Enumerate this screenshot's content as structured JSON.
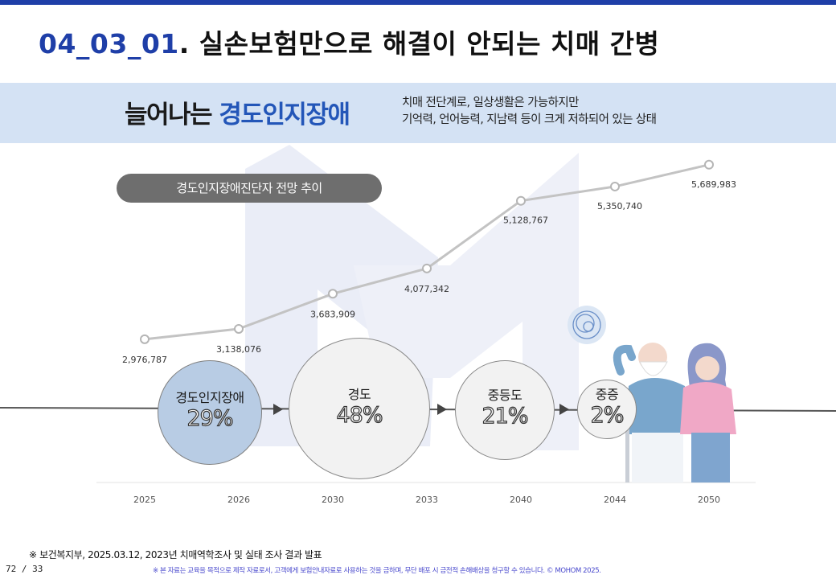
{
  "header": {
    "code": "04_03_01",
    "title": ". 실손보험만으로 해결이 안되는 치매 간병"
  },
  "banner": {
    "headline_dark": "늘어나는 ",
    "headline_blue": "경도인지장애",
    "desc_line1": "치매 전단계로, 일상생활은 가능하지만",
    "desc_line2": "기억력, 언어능력, 지남력 등이 크게 저하되어 있는 상태"
  },
  "pill_label": "경도인지장애진단자 전망 추이",
  "chart_data": {
    "type": "line",
    "title": "경도인지장애진단자 전망 추이",
    "categories": [
      "2025",
      "2026",
      "2030",
      "2033",
      "2040",
      "2044",
      "2050"
    ],
    "values": [
      2976787,
      3138076,
      3683909,
      4077342,
      5128767,
      5350740,
      5689983
    ],
    "value_labels": [
      "2,976,787",
      "3,138,076",
      "3,683,909",
      "4,077,342",
      "5,128,767",
      "5,350,740",
      "5,689,983"
    ],
    "line_color": "#c3c3c3",
    "ylim": [
      2500000,
      6000000
    ]
  },
  "stages": [
    {
      "label": "경도인지장애",
      "pct": "29%",
      "value": 29,
      "fill": "#b8cce4"
    },
    {
      "label": "경도",
      "pct": "48%",
      "value": 48,
      "fill": "#f2f2f2"
    },
    {
      "label": "중등도",
      "pct": "21%",
      "value": 21,
      "fill": "#f2f2f2"
    },
    {
      "label": "중증",
      "pct": "2%",
      "value": 2,
      "fill": "#f2f2f2"
    }
  ],
  "footer": {
    "source": "※ 보건복지부, 2025.03.12, 2023년 치매역학조사 및 실태 조사 결과 발표",
    "page": "72 / 33",
    "disclaimer": "※ 본 자료는 교육을 목적으로 제작 자료로서, 고객에게 보험안내자료로 사용하는 것을 금하며, 무단 배포 시 금전적 손해배상을 청구할 수 있습니다. © MOHOM 2025."
  }
}
